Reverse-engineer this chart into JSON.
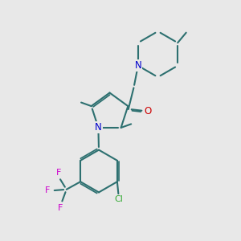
{
  "background_color": "#e8e8e8",
  "bond_color": "#2d7070",
  "N_color": "#0000cc",
  "O_color": "#cc0000",
  "Cl_color": "#33aa33",
  "F_color": "#cc00cc",
  "line_width": 1.5,
  "figsize": [
    3.0,
    3.0
  ],
  "dpi": 100,
  "xlim": [
    0,
    10
  ],
  "ylim": [
    0,
    10
  ]
}
